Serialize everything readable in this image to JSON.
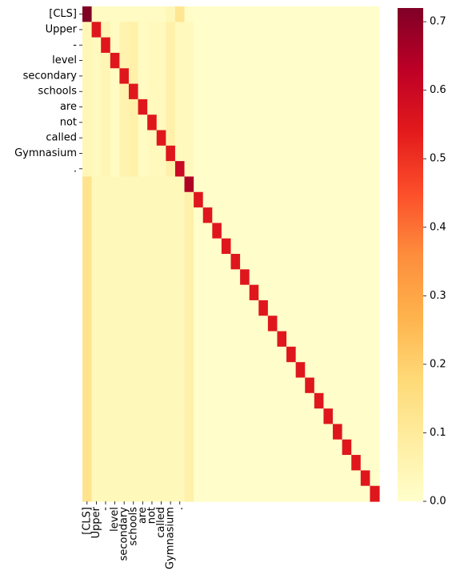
{
  "chart_data": {
    "type": "heatmap",
    "title": "",
    "xlabel": "",
    "ylabel": "",
    "tokens": [
      "[CLS]",
      "Upper",
      "-",
      "level",
      "secondary",
      "schools",
      "are",
      "not",
      "called",
      "Gymnasium",
      "."
    ],
    "ytick_labels": [
      "[CLS]",
      "Upper",
      "-",
      "level",
      "secondary",
      "schools",
      "are",
      "not",
      "called",
      "Gymnasium",
      "."
    ],
    "xtick_labels": [
      "[CLS]",
      "Upper",
      "-",
      "level",
      "secondary",
      "schools",
      "are",
      "not",
      "called",
      "Gymnasium",
      "."
    ],
    "n_rows": 32,
    "n_cols": 32,
    "colormap": "YlOrRd",
    "vmin": 0.0,
    "vmax": 0.72,
    "colorbar_ticks": [
      "0.0",
      "0.1",
      "0.2",
      "0.3",
      "0.4",
      "0.5",
      "0.6",
      "0.7"
    ],
    "colorbar_tick_values": [
      0.0,
      0.1,
      0.2,
      0.3,
      0.4,
      0.5,
      0.6,
      0.7
    ],
    "column_baseline": [
      0.085,
      0.02,
      0.03,
      0.015,
      0.04,
      0.05,
      0.015,
      0.02,
      0.02,
      0.035,
      0.06,
      0.005,
      0.005,
      0.005,
      0.005,
      0.005,
      0.005,
      0.005,
      0.005,
      0.005,
      0.005,
      0.005,
      0.005,
      0.005,
      0.005,
      0.005,
      0.005,
      0.005,
      0.005,
      0.005,
      0.005,
      0.005
    ],
    "diagonal_values": [
      0.72,
      0.55,
      0.55,
      0.55,
      0.55,
      0.55,
      0.55,
      0.55,
      0.55,
      0.55,
      0.6,
      0.65,
      0.55,
      0.55,
      0.55,
      0.55,
      0.55,
      0.55,
      0.55,
      0.55,
      0.55,
      0.55,
      0.55,
      0.55,
      0.55,
      0.55,
      0.55,
      0.55,
      0.55,
      0.55,
      0.55,
      0.55
    ],
    "cls_row_values": [
      0.72,
      0.02,
      0.02,
      0.02,
      0.02,
      0.02,
      0.02,
      0.02,
      0.02,
      0.04,
      0.12,
      0.01,
      0.005,
      0.005,
      0.005,
      0.005,
      0.005,
      0.005,
      0.005,
      0.005,
      0.005,
      0.005,
      0.005,
      0.005,
      0.005,
      0.005,
      0.005,
      0.005,
      0.005,
      0.005,
      0.005,
      0.005
    ],
    "sentence_cross_values": [
      0.04,
      0.03,
      0.05,
      0.02,
      0.06,
      0.07,
      0.02,
      0.03,
      0.03,
      0.07,
      0.03
    ],
    "padding_first_col_value": 0.13,
    "padding_cols_1_10_value": 0.035
  }
}
